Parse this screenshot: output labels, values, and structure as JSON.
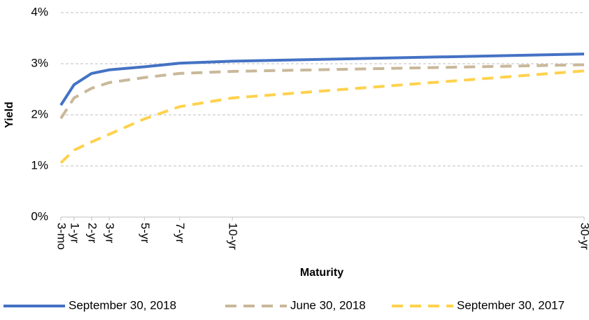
{
  "chart_data": {
    "type": "line",
    "x_label": "Maturity",
    "y_label": "Yield",
    "xlim": [
      0.25,
      30
    ],
    "xticks": [
      {
        "value": 0.25,
        "label": "3-mo"
      },
      {
        "value": 1,
        "label": "1-yr"
      },
      {
        "value": 2,
        "label": "2-yr"
      },
      {
        "value": 3,
        "label": "3-yr"
      },
      {
        "value": 5,
        "label": "5-yr"
      },
      {
        "value": 7,
        "label": "7-yr"
      },
      {
        "value": 10,
        "label": "10-yr"
      },
      {
        "value": 30,
        "label": "30-yr"
      }
    ],
    "ylim": [
      0,
      4
    ],
    "yticks": [
      {
        "value": 0,
        "label": "0%"
      },
      {
        "value": 1,
        "label": "1%"
      },
      {
        "value": 2,
        "label": "2%"
      },
      {
        "value": 3,
        "label": "3%"
      },
      {
        "value": 4,
        "label": "4%"
      }
    ],
    "grid": true,
    "legend": "bottom",
    "x": [
      0.25,
      1,
      2,
      3,
      5,
      7,
      10,
      30
    ],
    "series": [
      {
        "name": "September 30, 2018",
        "color": "#4472c4",
        "dashed": false,
        "values": [
          2.19,
          2.59,
          2.81,
          2.88,
          2.94,
          3.01,
          3.05,
          3.19
        ]
      },
      {
        "name": "June 30, 2018",
        "color": "#c9b89a",
        "dashed": true,
        "values": [
          1.93,
          2.33,
          2.52,
          2.63,
          2.73,
          2.81,
          2.85,
          2.98
        ]
      },
      {
        "name": "September 30, 2017",
        "color": "#ffd24d",
        "dashed": true,
        "values": [
          1.06,
          1.31,
          1.47,
          1.62,
          1.92,
          2.16,
          2.33,
          2.86
        ]
      }
    ]
  }
}
